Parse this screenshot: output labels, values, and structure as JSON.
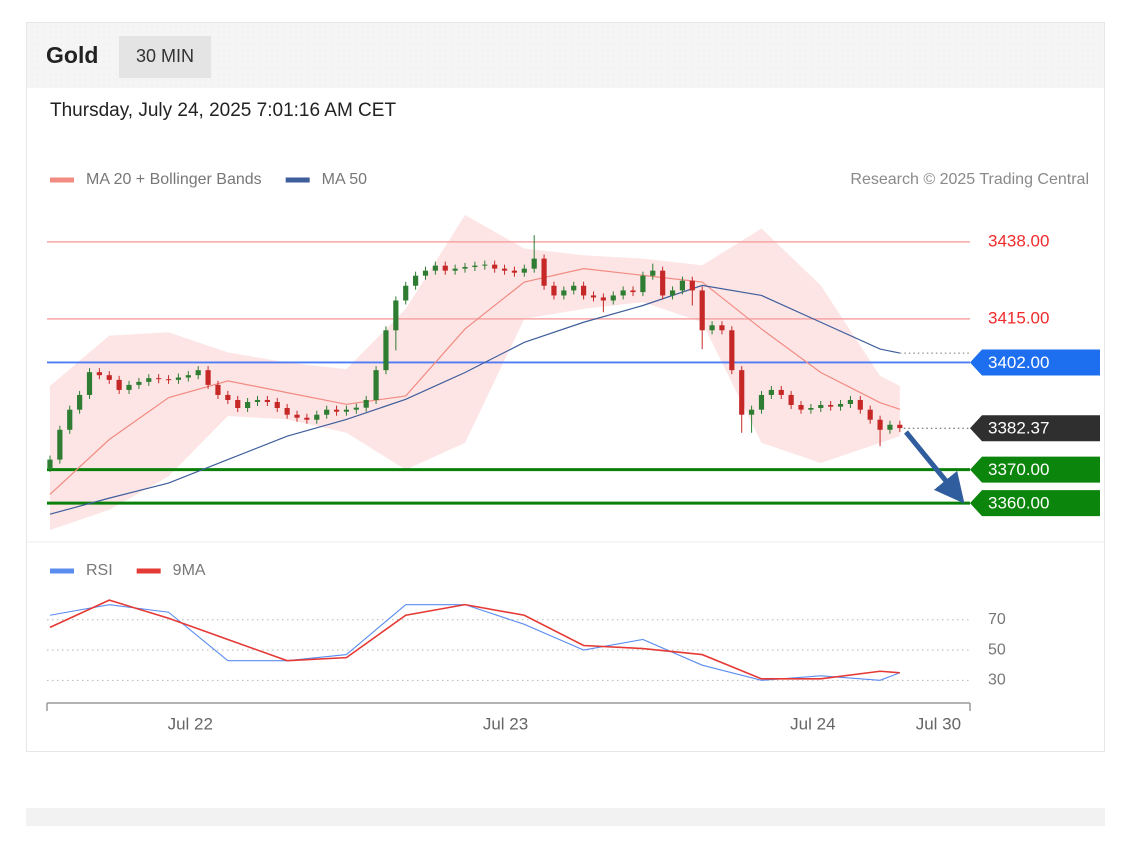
{
  "header": {
    "title": "Gold",
    "timeframe": "30 MIN",
    "timestamp": "Thursday, July 24, 2025 7:01:16 AM CET",
    "source": "Research © 2025 Trading Central"
  },
  "chart_data": [
    {
      "type": "candlestick",
      "xlim": [
        -0.3,
        93.1
      ],
      "ylim": [
        3349,
        3449
      ],
      "up_color": "#2e7d32",
      "down_color": "#c62828",
      "open": [
        3370.5,
        3373.0,
        3381.9,
        3387.9,
        3392.3,
        3399.1,
        3398.2,
        3396.8,
        3393.8,
        3395.3,
        3396.2,
        3397.3,
        3397.0,
        3396.8,
        3397.5,
        3398.2,
        3399.7,
        3395.3,
        3392.3,
        3390.8,
        3388.4,
        3390.2,
        3390.8,
        3390.2,
        3388.4,
        3386.4,
        3385.5,
        3384.9,
        3386.4,
        3387.9,
        3387.3,
        3387.9,
        3388.5,
        3390.8,
        3399.7,
        3411.6,
        3420.5,
        3424.9,
        3427.9,
        3429.4,
        3430.9,
        3429.4,
        3430.0,
        3430.5,
        3430.9,
        3431.2,
        3430.0,
        3429.4,
        3428.8,
        3430.0,
        3433.0,
        3424.9,
        3422.0,
        3423.5,
        3424.9,
        3422.0,
        3421.4,
        3420.5,
        3422.0,
        3423.5,
        3423.0,
        3427.9,
        3429.4,
        3422.0,
        3423.5,
        3426.4,
        3423.5,
        3411.6,
        3413.1,
        3411.6,
        3399.7,
        3386.4,
        3387.9,
        3392.3,
        3393.8,
        3392.3,
        3389.3,
        3387.9,
        3388.4,
        3389.3,
        3388.8,
        3389.6,
        3390.8,
        3387.9,
        3384.9,
        3381.9,
        3383.4
      ],
      "high": [
        3374.2,
        3383.1,
        3389.1,
        3393.5,
        3400.3,
        3400.3,
        3399.4,
        3398.0,
        3396.5,
        3397.4,
        3398.5,
        3398.5,
        3398.2,
        3398.7,
        3399.4,
        3400.9,
        3400.9,
        3396.5,
        3393.5,
        3392.0,
        3391.4,
        3392.0,
        3392.0,
        3391.4,
        3389.6,
        3387.6,
        3386.7,
        3387.6,
        3389.1,
        3389.1,
        3389.1,
        3389.7,
        3392.0,
        3400.9,
        3412.8,
        3421.7,
        3426.1,
        3429.1,
        3430.6,
        3432.1,
        3432.1,
        3431.2,
        3431.7,
        3432.1,
        3432.4,
        3432.4,
        3431.2,
        3430.6,
        3431.2,
        3440.0,
        3434.2,
        3426.1,
        3424.7,
        3426.1,
        3426.1,
        3423.2,
        3422.6,
        3423.2,
        3424.7,
        3424.7,
        3429.1,
        3431.5,
        3430.6,
        3424.7,
        3427.6,
        3427.6,
        3424.7,
        3414.3,
        3414.3,
        3412.8,
        3400.9,
        3389.1,
        3393.5,
        3395.0,
        3395.0,
        3393.5,
        3390.5,
        3389.6,
        3390.5,
        3390.5,
        3390.8,
        3392.0,
        3392.0,
        3389.1,
        3386.1,
        3384.6,
        3384.6
      ],
      "low": [
        3369.3,
        3371.8,
        3380.7,
        3386.7,
        3391.1,
        3397.0,
        3395.6,
        3392.6,
        3392.6,
        3394.1,
        3395.0,
        3395.8,
        3395.6,
        3395.6,
        3396.3,
        3397.0,
        3394.1,
        3391.1,
        3389.6,
        3387.2,
        3387.2,
        3389.0,
        3389.0,
        3387.2,
        3385.2,
        3384.3,
        3383.7,
        3383.7,
        3385.2,
        3386.1,
        3386.1,
        3386.7,
        3387.3,
        3389.6,
        3398.5,
        3405.6,
        3419.3,
        3423.7,
        3426.7,
        3428.2,
        3428.2,
        3428.2,
        3428.8,
        3429.3,
        3429.7,
        3428.8,
        3428.2,
        3427.6,
        3427.6,
        3428.8,
        3423.7,
        3420.8,
        3420.8,
        3422.3,
        3420.8,
        3420.2,
        3417.0,
        3419.3,
        3420.8,
        3421.8,
        3421.8,
        3426.7,
        3420.8,
        3420.8,
        3422.3,
        3419.0,
        3406.0,
        3410.4,
        3410.4,
        3398.5,
        3381.0,
        3381.0,
        3386.7,
        3391.1,
        3391.1,
        3388.1,
        3386.7,
        3386.7,
        3387.2,
        3387.6,
        3387.6,
        3388.4,
        3386.7,
        3383.7,
        3377.0,
        3380.7,
        3381.2
      ],
      "close": [
        3373.0,
        3381.9,
        3387.9,
        3392.3,
        3399.1,
        3398.2,
        3396.8,
        3393.8,
        3395.3,
        3396.2,
        3397.3,
        3397.0,
        3396.8,
        3397.5,
        3398.2,
        3399.7,
        3395.3,
        3392.3,
        3390.8,
        3388.4,
        3390.2,
        3390.8,
        3390.2,
        3388.4,
        3386.4,
        3385.5,
        3384.9,
        3386.4,
        3387.9,
        3387.3,
        3387.9,
        3388.5,
        3390.8,
        3399.7,
        3411.6,
        3420.5,
        3424.9,
        3427.9,
        3429.4,
        3430.9,
        3429.4,
        3430.0,
        3430.5,
        3430.9,
        3431.2,
        3430.0,
        3429.4,
        3428.8,
        3430.0,
        3433.0,
        3424.9,
        3422.0,
        3423.5,
        3424.9,
        3422.0,
        3421.4,
        3420.5,
        3422.0,
        3423.5,
        3423.0,
        3427.9,
        3429.4,
        3422.0,
        3423.5,
        3426.4,
        3423.5,
        3411.6,
        3413.1,
        3411.6,
        3399.7,
        3386.4,
        3387.9,
        3392.3,
        3393.8,
        3392.3,
        3389.3,
        3387.9,
        3388.4,
        3389.3,
        3388.8,
        3389.6,
        3390.8,
        3387.9,
        3384.9,
        3381.9,
        3383.4,
        3382.4
      ],
      "series": [
        {
          "name": "MA 20 + Bollinger Bands",
          "color": "#f28b82",
          "band_color": "#fde0e0",
          "x": [
            0,
            6,
            12,
            18,
            24,
            30,
            36,
            42,
            48,
            54,
            60,
            66,
            72,
            78,
            84,
            86
          ],
          "values": [
            3362.6,
            3379.0,
            3391.5,
            3396.5,
            3393.0,
            3389.5,
            3392.0,
            3412.0,
            3426.0,
            3430.0,
            3428.0,
            3426.0,
            3412.0,
            3399.0,
            3390.0,
            3388.0
          ],
          "upper": [
            3395,
            3410,
            3411,
            3405,
            3402,
            3400,
            3418,
            3446,
            3436,
            3434,
            3433,
            3431,
            3442,
            3425,
            3398,
            3395
          ],
          "lower": [
            3352,
            3358,
            3368,
            3386,
            3385,
            3381,
            3370,
            3378,
            3415,
            3418,
            3420,
            3414,
            3378,
            3372,
            3378,
            3380
          ]
        },
        {
          "name": "MA 50",
          "color": "#3f5e9c",
          "x": [
            0,
            6,
            12,
            18,
            24,
            30,
            36,
            42,
            48,
            54,
            60,
            66,
            72,
            78,
            84,
            86
          ],
          "values": [
            3356.7,
            3361.5,
            3366,
            3373,
            3380,
            3385,
            3391,
            3399,
            3408,
            3414,
            3419,
            3425,
            3422,
            3414,
            3406,
            3404.8
          ]
        }
      ],
      "levels": [
        {
          "value": 3438,
          "label": "3438.00",
          "kind": "resistance"
        },
        {
          "value": 3415,
          "label": "3415.00",
          "kind": "resistance"
        },
        {
          "value": 3402,
          "label": "3402.00",
          "kind": "pivot"
        },
        {
          "value": 3370,
          "label": "3370.00",
          "kind": "support"
        },
        {
          "value": 3360,
          "label": "3360.00",
          "kind": "support"
        }
      ],
      "last_price": {
        "value": 3382.37,
        "label": "3382.37"
      }
    },
    {
      "type": "line",
      "xlim": [
        -0.3,
        93.1
      ],
      "ylim": [
        17,
        91
      ],
      "yticks": [
        70,
        50,
        30
      ],
      "grid": true,
      "xticks": [
        {
          "value": 14.2,
          "label": "Jul 22"
        },
        {
          "value": 46.1,
          "label": "Jul 23"
        },
        {
          "value": 77.2,
          "label": "Jul 24"
        },
        {
          "value": 89.9,
          "label": "Jul 30"
        }
      ],
      "series": [
        {
          "name": "RSI",
          "color": "#5b8def",
          "x": [
            0,
            6,
            12,
            18,
            24,
            30,
            36,
            42,
            48,
            54,
            60,
            66,
            72,
            78,
            84,
            86
          ],
          "values": [
            73,
            80,
            75,
            43,
            43,
            47,
            80,
            80,
            67,
            50,
            57,
            40,
            30,
            33,
            30,
            35
          ]
        },
        {
          "name": "9MA",
          "color": "#e53935",
          "x": [
            0,
            6,
            12,
            18,
            24,
            30,
            36,
            42,
            48,
            54,
            60,
            66,
            72,
            78,
            84,
            86
          ],
          "values": [
            65,
            83,
            71,
            57,
            43,
            45,
            73,
            80,
            73,
            53,
            51,
            47,
            31,
            31,
            36,
            35
          ]
        }
      ]
    }
  ]
}
